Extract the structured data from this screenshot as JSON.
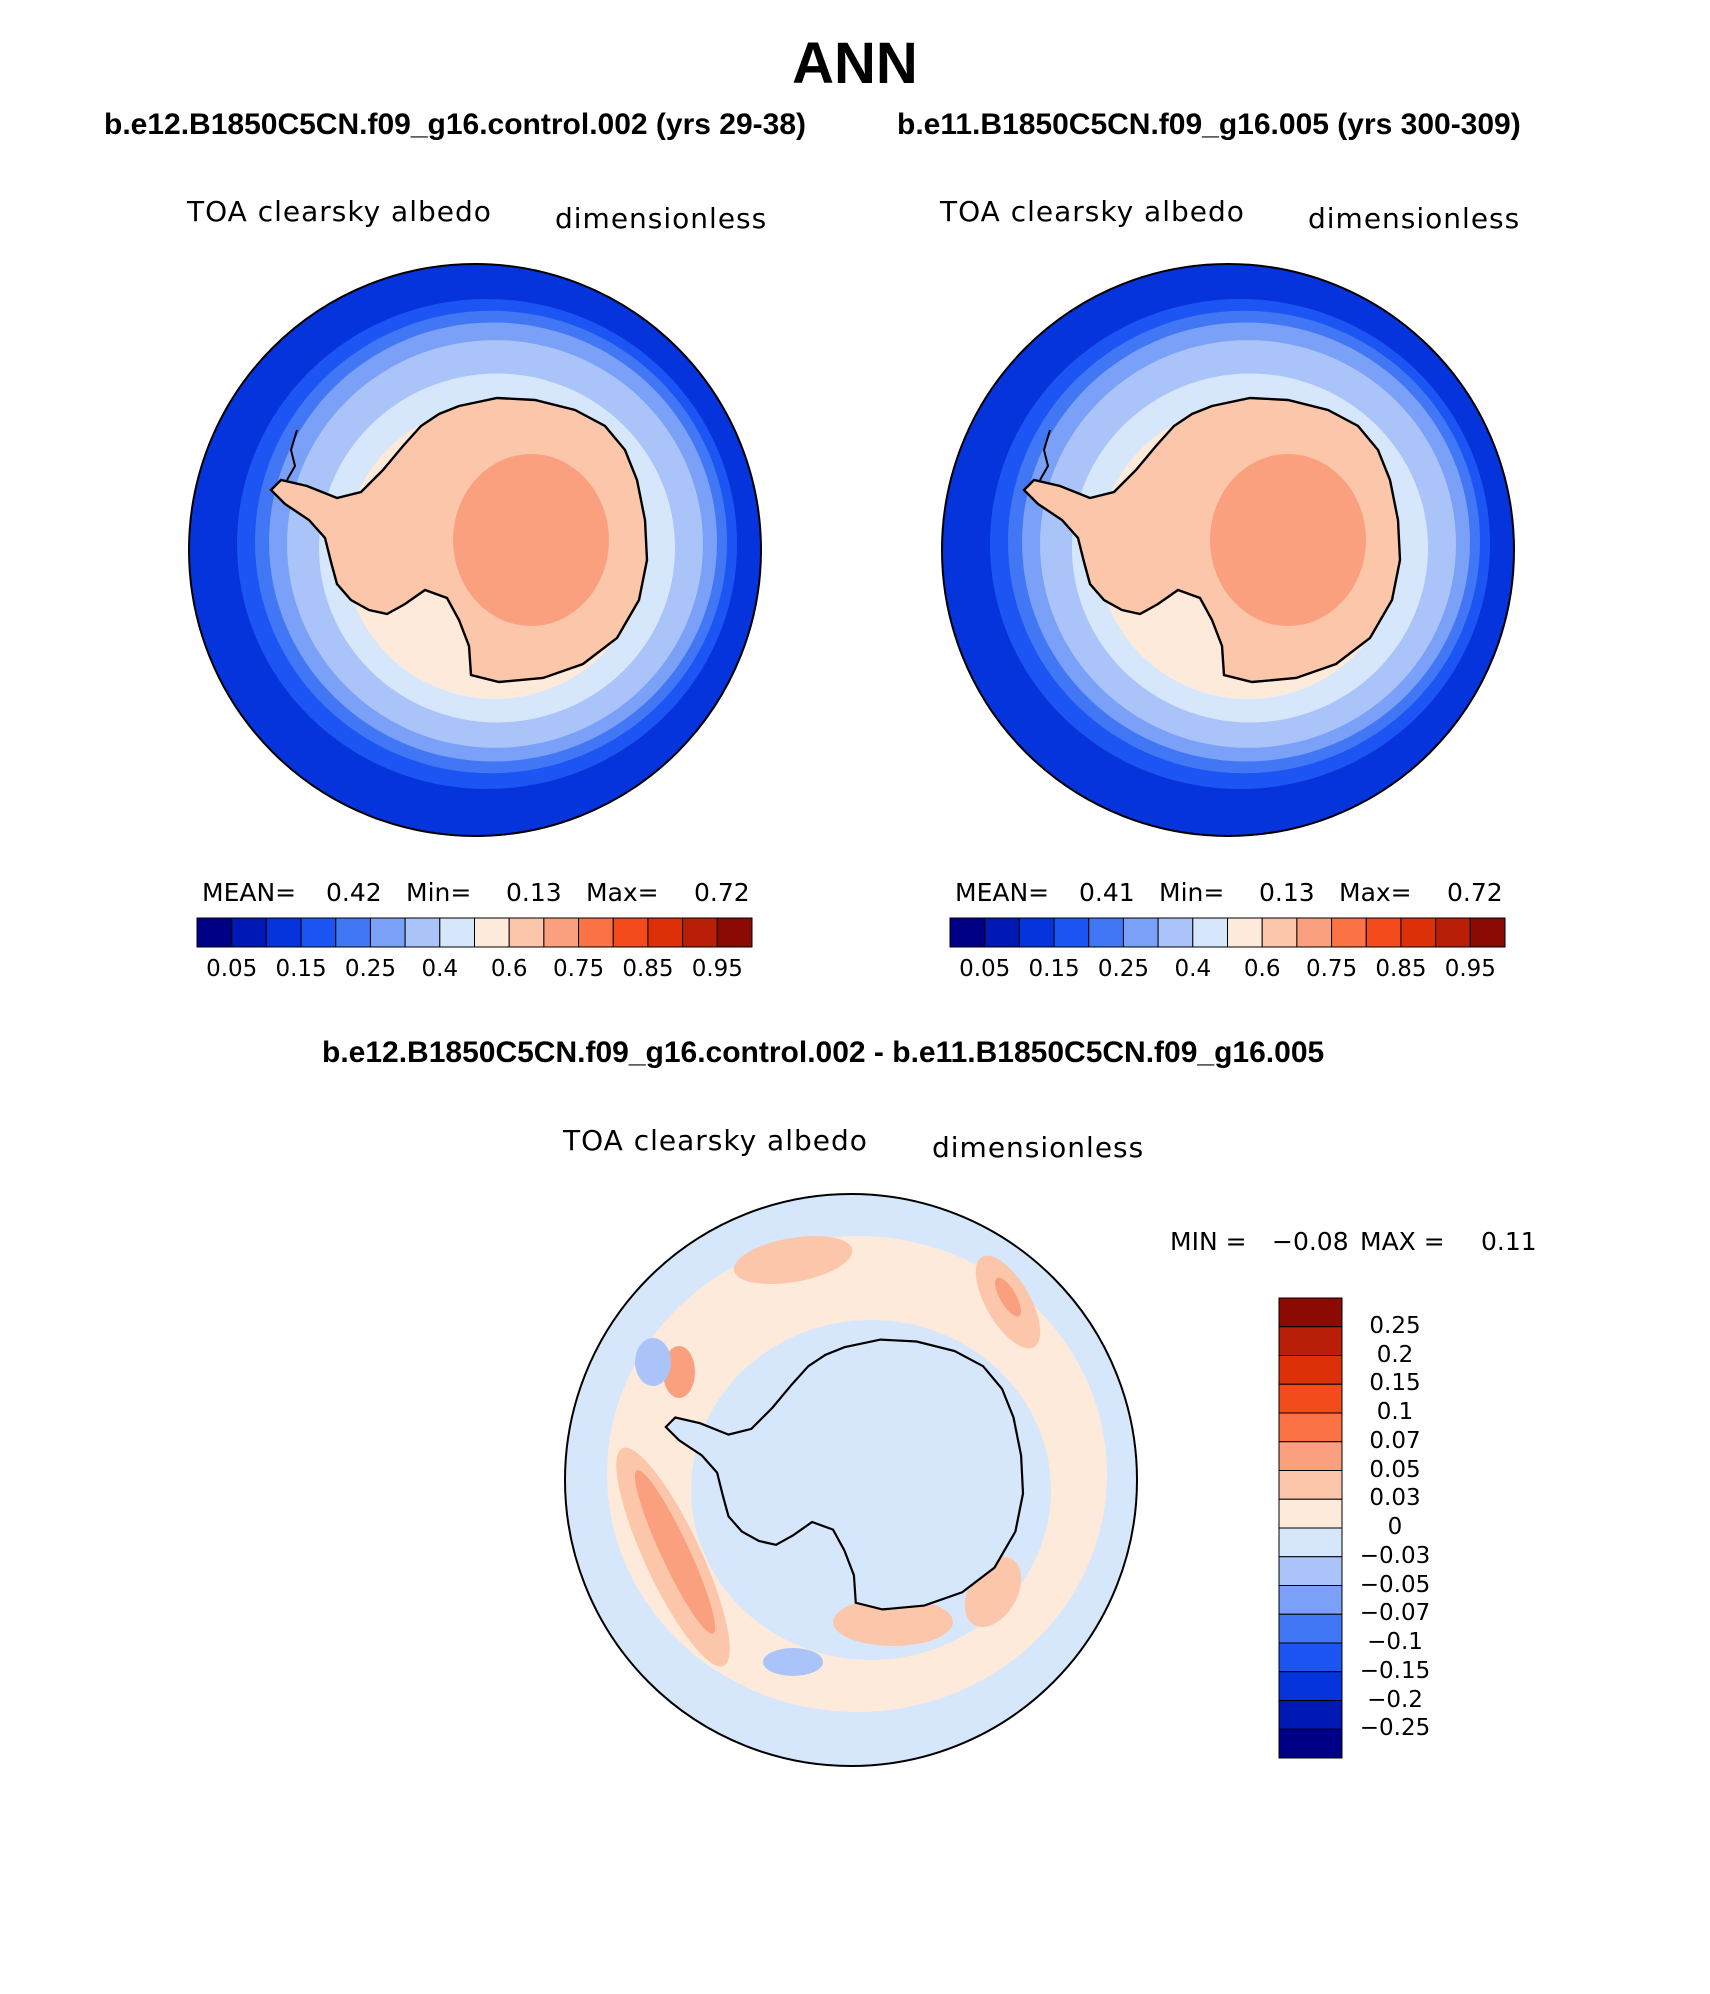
{
  "page": {
    "title": "ANN",
    "left_case": "b.e12.B1850C5CN.f09_g16.control.002 (yrs 29-38)",
    "right_case": "b.e11.B1850C5CN.f09_g16.005 (yrs 300-309)",
    "diff_title": "b.e12.B1850C5CN.f09_g16.control.002 - b.e11.B1850C5CN.f09_g16.005"
  },
  "panels": {
    "left": {
      "variable": "TOA clearsky albedo",
      "units": "dimensionless",
      "mean_label": "MEAN=",
      "mean": "0.42",
      "min_label": "Min=",
      "min": "0.13",
      "max_label": "Max=",
      "max": "0.72"
    },
    "right": {
      "variable": "TOA clearsky albedo",
      "units": "dimensionless",
      "mean_label": "MEAN=",
      "mean": "0.41",
      "min_label": "Min=",
      "min": "0.13",
      "max_label": "Max=",
      "max": "0.72"
    },
    "diff": {
      "variable": "TOA clearsky albedo",
      "units": "dimensionless",
      "min_label": "MIN =",
      "min": "−0.08",
      "max_label": "MAX =",
      "max": "0.11"
    }
  },
  "chart_data": [
    {
      "type": "heatmap",
      "projection": "south polar stereographic",
      "title": "TOA clearsky albedo",
      "units": "dimensionless",
      "case": "b.e12.B1850C5CN.f09_g16.control.002 (yrs 29-38)",
      "mean": 0.42,
      "min": 0.13,
      "max": 0.72,
      "colorbar_levels": [
        0.05,
        0.1,
        0.15,
        0.2,
        0.25,
        0.3,
        0.4,
        0.5,
        0.6,
        0.65,
        0.75,
        0.8,
        0.85,
        0.9,
        0.95
      ],
      "colorbar_tick_labels": [
        "0.05",
        "0.15",
        "0.25",
        "0.4",
        "0.6",
        "0.75",
        "0.85",
        "0.95"
      ],
      "colors": [
        "#000087",
        "#0019b4",
        "#0533dc",
        "#1c55f3",
        "#4177f5",
        "#7aa0f7",
        "#aac4fa",
        "#d6e7fc",
        "#feeadb",
        "#fcc6ab",
        "#fba07e",
        "#fb7245",
        "#f44b1c",
        "#dd3009",
        "#b81e08",
        "#8b0a03"
      ]
    },
    {
      "type": "heatmap",
      "projection": "south polar stereographic",
      "title": "TOA clearsky albedo",
      "units": "dimensionless",
      "case": "b.e11.B1850C5CN.f09_g16.005 (yrs 300-309)",
      "mean": 0.41,
      "min": 0.13,
      "max": 0.72,
      "colorbar_levels": [
        0.05,
        0.1,
        0.15,
        0.2,
        0.25,
        0.3,
        0.4,
        0.5,
        0.6,
        0.65,
        0.75,
        0.8,
        0.85,
        0.9,
        0.95
      ],
      "colorbar_tick_labels": [
        "0.05",
        "0.15",
        "0.25",
        "0.4",
        "0.6",
        "0.75",
        "0.85",
        "0.95"
      ],
      "colors": [
        "#000087",
        "#0019b4",
        "#0533dc",
        "#1c55f3",
        "#4177f5",
        "#7aa0f7",
        "#aac4fa",
        "#d6e7fc",
        "#feeadb",
        "#fcc6ab",
        "#fba07e",
        "#fb7245",
        "#f44b1c",
        "#dd3009",
        "#b81e08",
        "#8b0a03"
      ]
    },
    {
      "type": "heatmap",
      "projection": "south polar stereographic",
      "title": "TOA clearsky albedo",
      "units": "dimensionless",
      "case": "b.e12.B1850C5CN.f09_g16.control.002 - b.e11.B1850C5CN.f09_g16.005",
      "min": -0.08,
      "max": 0.11,
      "colorbar_tick_labels": [
        "0.25",
        "0.2",
        "0.15",
        "0.1",
        "0.07",
        "0.05",
        "0.03",
        "0",
        "−0.03",
        "−0.05",
        "−0.07",
        "−0.1",
        "−0.15",
        "−0.2",
        "−0.25"
      ],
      "colors": [
        "#8b0a03",
        "#b81e08",
        "#dd3009",
        "#f44b1c",
        "#fb7245",
        "#fba07e",
        "#fcc6ab",
        "#feeadb",
        "#d6e7fc",
        "#aac4fa",
        "#7aa0f7",
        "#4177f5",
        "#1c55f3",
        "#0533dc",
        "#0019b4",
        "#000087"
      ]
    }
  ]
}
